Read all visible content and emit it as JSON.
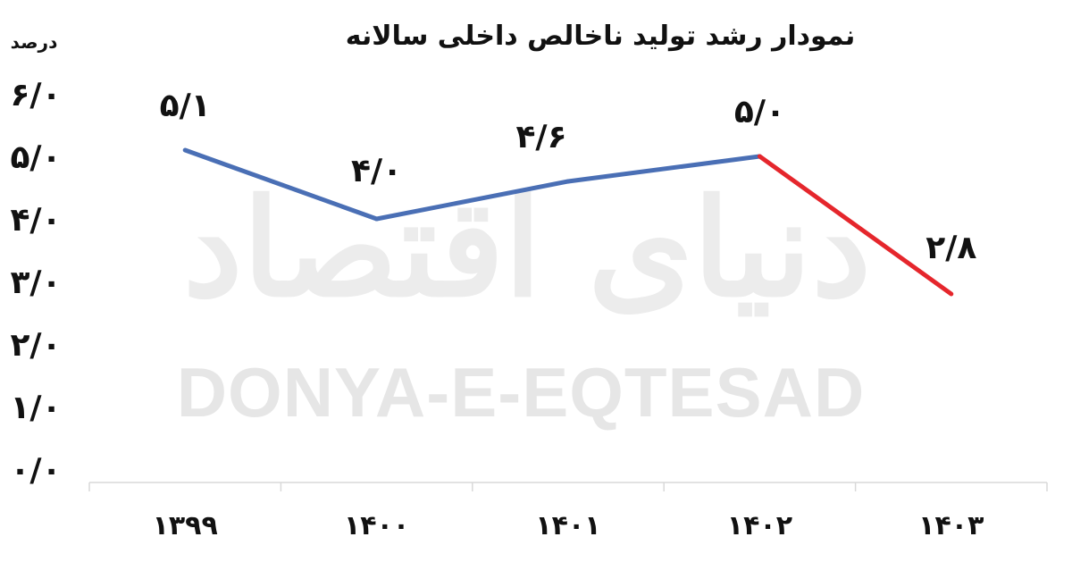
{
  "chart_data": {
    "type": "line",
    "title": "نمودار رشد تولید ناخالص داخلی سالانه",
    "ylabel": "درصد",
    "xlabel": "",
    "categories": [
      "۱۳۹۹",
      "۱۴۰۰",
      "۱۴۰۱",
      "۱۴۰۲",
      "۱۴۰۳"
    ],
    "values": [
      5.1,
      4.0,
      4.6,
      5.0,
      2.8
    ],
    "data_labels": [
      "۵/۱",
      "۴/۰",
      "۴/۶",
      "۵/۰",
      "۲/۸"
    ],
    "y_ticks": [
      {
        "value": 0,
        "label": "۰/۰"
      },
      {
        "value": 1,
        "label": "۱/۰"
      },
      {
        "value": 2,
        "label": "۲/۰"
      },
      {
        "value": 3,
        "label": "۳/۰"
      },
      {
        "value": 4,
        "label": "۴/۰"
      },
      {
        "value": 5,
        "label": "۵/۰"
      },
      {
        "value": 6,
        "label": "۶/۰"
      }
    ],
    "ylim": [
      0,
      6
    ],
    "grid": false,
    "legend": "none",
    "segment_colors": [
      "#4a6fb5",
      "#4a6fb5",
      "#4a6fb5",
      "#e5262c"
    ]
  },
  "watermark": {
    "latin": "DONYA-E-EQTESAD",
    "arabic": "دنیای اقتصاد"
  }
}
